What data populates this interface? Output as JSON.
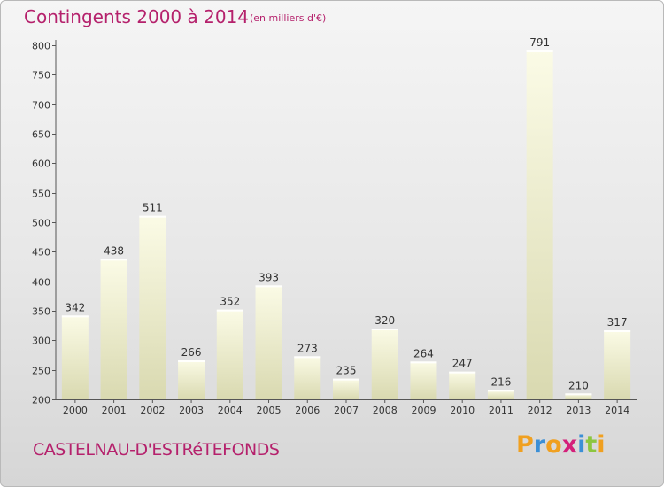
{
  "header": {
    "title": "Contingents 2000 à 2014",
    "unit": "(en milliers d'€)"
  },
  "footer": {
    "commune": "CASTELNAU-D'ESTRéTEFONDS",
    "brand": {
      "letters": [
        "P",
        "r",
        "o",
        "x",
        "i",
        "t",
        "i"
      ],
      "colors": [
        "#f0a020",
        "#3b8fd6",
        "#f0a020",
        "#d4207a",
        "#3b8fd6",
        "#8cc63f",
        "#f0a020"
      ]
    }
  },
  "chart_data": {
    "type": "bar",
    "categories": [
      "2000",
      "2001",
      "2002",
      "2003",
      "2004",
      "2005",
      "2006",
      "2007",
      "2008",
      "2009",
      "2010",
      "2011",
      "2012",
      "2013",
      "2014"
    ],
    "values": [
      342,
      438,
      511,
      266,
      352,
      393,
      273,
      235,
      320,
      264,
      247,
      216,
      791,
      210,
      317
    ],
    "title": "Contingents 2000 à 2014",
    "xlabel": "",
    "ylabel": "",
    "ylim": [
      200,
      800
    ],
    "yticks": [
      200,
      250,
      300,
      350,
      400,
      450,
      500,
      550,
      600,
      650,
      700,
      750,
      800
    ],
    "grid": false,
    "bar_color": "#f4f4cf"
  }
}
